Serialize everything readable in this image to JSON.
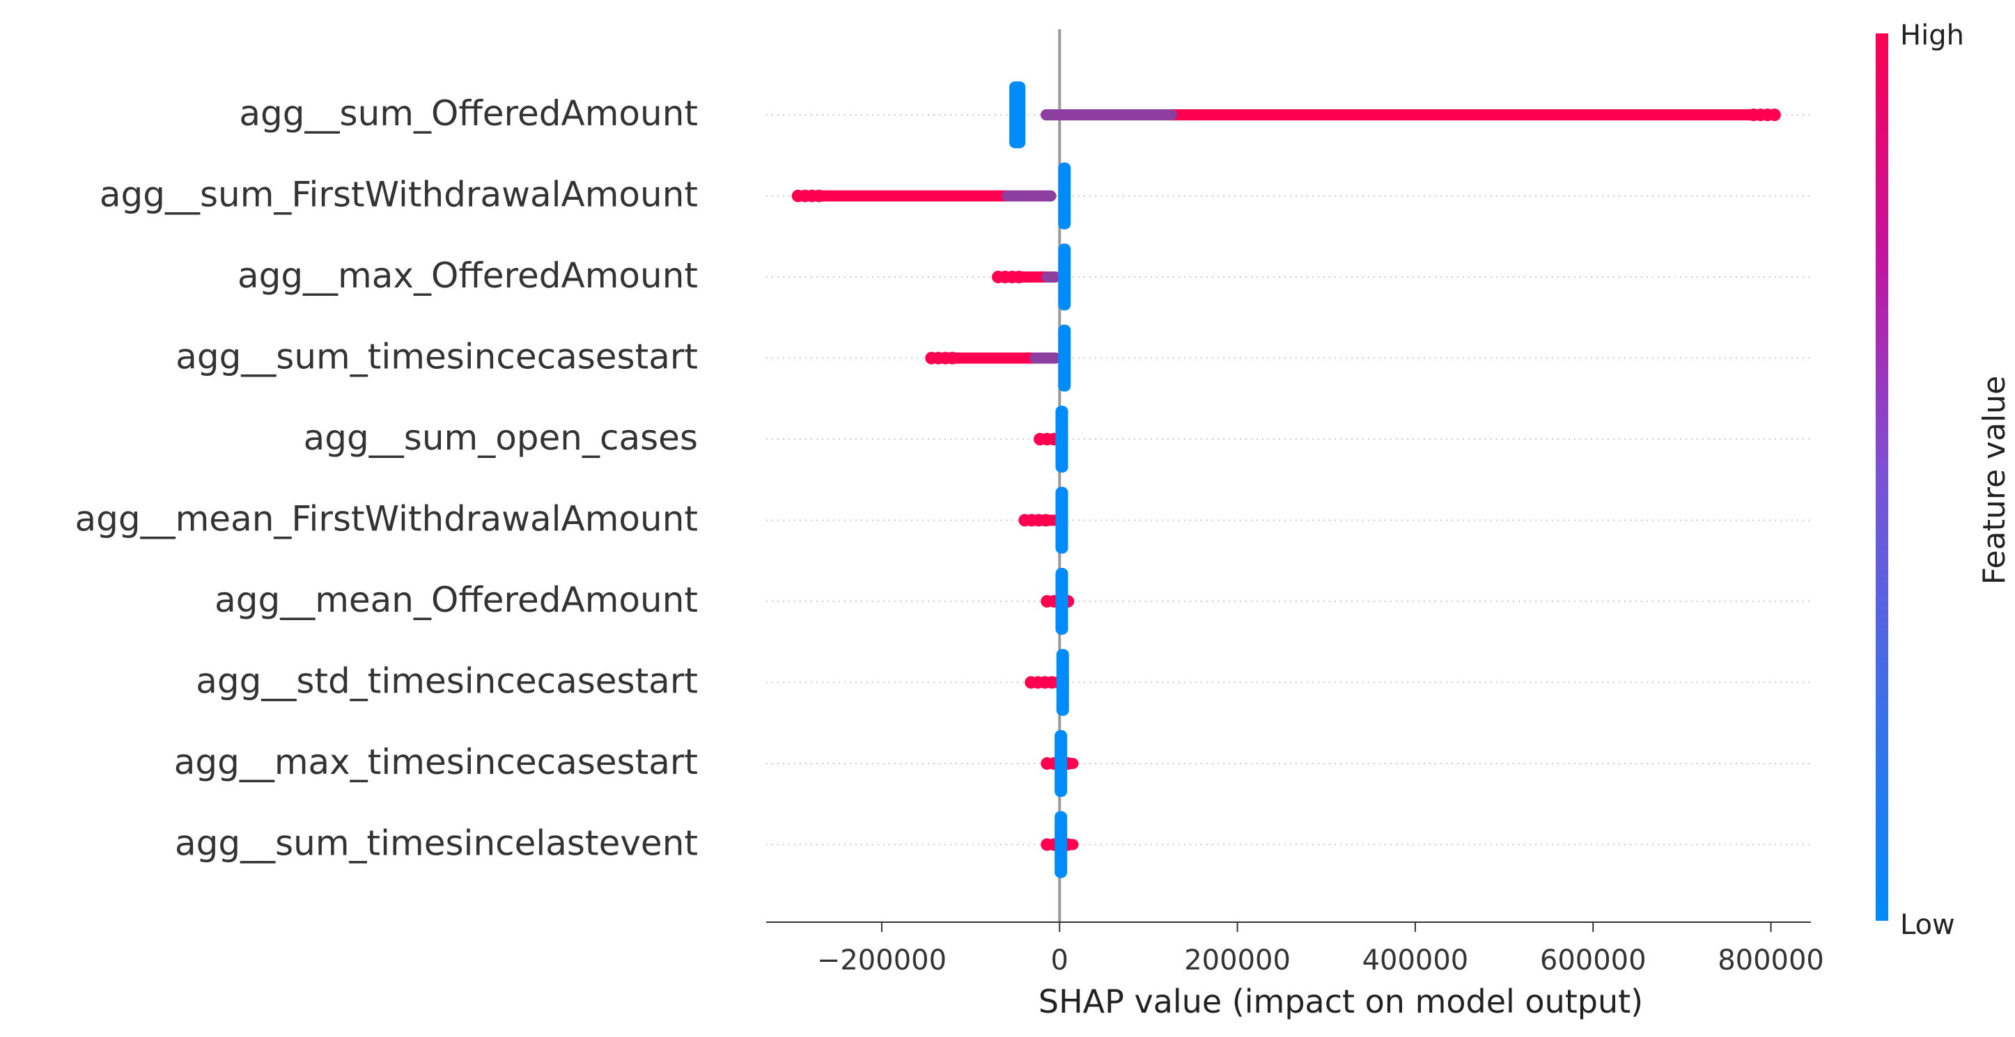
{
  "chart_data": {
    "type": "scatter",
    "subtype": "shap-beeswarm",
    "xlabel": "SHAP value (impact on model output)",
    "xlim": [
      -330000,
      845000
    ],
    "xticks": [
      -200000,
      0,
      200000,
      400000,
      600000,
      800000
    ],
    "xtick_labels": [
      "−200000",
      "0",
      "200000",
      "400000",
      "600000",
      "800000"
    ],
    "zero_line": 0,
    "grid": "horizontal dotted per feature",
    "colorbar": {
      "label": "Feature value",
      "high_label": "High",
      "low_label": "Low",
      "low_color": "#008bfb",
      "high_color": "#ff0051"
    },
    "features": [
      {
        "name": "agg__sum_OfferedAmount",
        "low_min": -55000,
        "low_max": -40000,
        "high_min": -15000,
        "high_max": 790000
      },
      {
        "name": "agg__sum_FirstWithdrawalAmount",
        "low_min": 0,
        "low_max": 7000,
        "high_min": -280000,
        "high_max": -10000
      },
      {
        "name": "agg__max_OfferedAmount",
        "low_min": 0,
        "low_max": 7000,
        "high_min": -55000,
        "high_max": -5000
      },
      {
        "name": "agg__sum_timesincecasestart",
        "low_min": 0,
        "low_max": 5000,
        "high_min": -130000,
        "high_max": -5000
      },
      {
        "name": "agg__sum_open_cases",
        "low_min": -3000,
        "low_max": 5000,
        "high_min": -8000,
        "high_max": 3000
      },
      {
        "name": "agg__mean_FirstWithdrawalAmount",
        "low_min": -3000,
        "low_max": 3000,
        "high_min": -25000,
        "high_max": -5000
      },
      {
        "name": "agg__mean_OfferedAmount",
        "low_min": -3000,
        "low_max": 3000,
        "high_min": 0,
        "high_max": 10000
      },
      {
        "name": "agg__std_timesincecasestart",
        "low_min": -2000,
        "low_max": 4000,
        "high_min": -18000,
        "high_max": -3000
      },
      {
        "name": "agg__max_timesincecasestart",
        "low_min": -4000,
        "low_max": 3000,
        "high_min": 0,
        "high_max": 15000
      },
      {
        "name": "agg__sum_timesincelastevent",
        "low_min": -4000,
        "low_max": 3000,
        "high_min": 0,
        "high_max": 15000
      }
    ]
  }
}
